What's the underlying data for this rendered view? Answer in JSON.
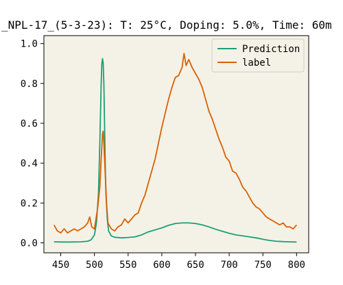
{
  "chart_data": {
    "type": "line",
    "title": "_NPL-17_(5-3-23): T: 25°C, Doping: 5.0%, Time: 60m",
    "xlabel": "",
    "ylabel": "",
    "xlim": [
      425,
      818
    ],
    "ylim": [
      -0.05,
      1.04
    ],
    "xticks": [
      450,
      500,
      550,
      600,
      650,
      700,
      750,
      800
    ],
    "yticks": [
      0.0,
      0.2,
      0.4,
      0.6,
      0.8,
      1.0
    ],
    "xtick_labels": [
      "450",
      "500",
      "550",
      "600",
      "650",
      "700",
      "750",
      "800"
    ],
    "ytick_labels": [
      "0.0",
      "0.2",
      "0.4",
      "0.6",
      "0.8",
      "1.0"
    ],
    "grid": false,
    "background": "#f4f2e6",
    "legend_position": "top-right",
    "series": [
      {
        "name": "Prediction",
        "color": "#1b9e77",
        "points": [
          [
            440,
            0.005
          ],
          [
            460,
            0.004
          ],
          [
            480,
            0.005
          ],
          [
            490,
            0.008
          ],
          [
            495,
            0.015
          ],
          [
            500,
            0.04
          ],
          [
            503,
            0.1
          ],
          [
            506,
            0.25
          ],
          [
            508,
            0.5
          ],
          [
            510,
            0.8
          ],
          [
            511,
            0.9
          ],
          [
            512,
            0.925
          ],
          [
            513,
            0.9
          ],
          [
            514,
            0.8
          ],
          [
            515,
            0.6
          ],
          [
            516,
            0.4
          ],
          [
            517,
            0.25
          ],
          [
            519,
            0.12
          ],
          [
            521,
            0.06
          ],
          [
            525,
            0.035
          ],
          [
            530,
            0.028
          ],
          [
            540,
            0.025
          ],
          [
            550,
            0.027
          ],
          [
            560,
            0.03
          ],
          [
            570,
            0.04
          ],
          [
            580,
            0.055
          ],
          [
            590,
            0.065
          ],
          [
            600,
            0.075
          ],
          [
            610,
            0.088
          ],
          [
            620,
            0.097
          ],
          [
            630,
            0.1
          ],
          [
            640,
            0.1
          ],
          [
            650,
            0.097
          ],
          [
            660,
            0.09
          ],
          [
            670,
            0.08
          ],
          [
            680,
            0.068
          ],
          [
            690,
            0.058
          ],
          [
            700,
            0.048
          ],
          [
            710,
            0.04
          ],
          [
            720,
            0.035
          ],
          [
            730,
            0.03
          ],
          [
            740,
            0.025
          ],
          [
            750,
            0.018
          ],
          [
            760,
            0.012
          ],
          [
            770,
            0.008
          ],
          [
            780,
            0.006
          ],
          [
            790,
            0.005
          ],
          [
            800,
            0.004
          ]
        ]
      },
      {
        "name": "label",
        "color": "#d95f02",
        "points": [
          [
            440,
            0.09
          ],
          [
            445,
            0.06
          ],
          [
            450,
            0.05
          ],
          [
            455,
            0.07
          ],
          [
            460,
            0.05
          ],
          [
            465,
            0.06
          ],
          [
            470,
            0.07
          ],
          [
            475,
            0.06
          ],
          [
            480,
            0.07
          ],
          [
            485,
            0.08
          ],
          [
            490,
            0.1
          ],
          [
            493,
            0.13
          ],
          [
            496,
            0.08
          ],
          [
            500,
            0.07
          ],
          [
            505,
            0.18
          ],
          [
            508,
            0.28
          ],
          [
            510,
            0.42
          ],
          [
            512,
            0.55
          ],
          [
            513,
            0.56
          ],
          [
            514,
            0.5
          ],
          [
            516,
            0.35
          ],
          [
            518,
            0.2
          ],
          [
            520,
            0.1
          ],
          [
            525,
            0.07
          ],
          [
            530,
            0.06
          ],
          [
            535,
            0.08
          ],
          [
            540,
            0.09
          ],
          [
            545,
            0.12
          ],
          [
            550,
            0.1
          ],
          [
            555,
            0.12
          ],
          [
            560,
            0.14
          ],
          [
            565,
            0.15
          ],
          [
            570,
            0.2
          ],
          [
            575,
            0.24
          ],
          [
            580,
            0.3
          ],
          [
            585,
            0.36
          ],
          [
            590,
            0.42
          ],
          [
            595,
            0.5
          ],
          [
            600,
            0.58
          ],
          [
            605,
            0.65
          ],
          [
            610,
            0.72
          ],
          [
            615,
            0.78
          ],
          [
            620,
            0.83
          ],
          [
            625,
            0.84
          ],
          [
            630,
            0.88
          ],
          [
            633,
            0.95
          ],
          [
            636,
            0.89
          ],
          [
            640,
            0.92
          ],
          [
            645,
            0.88
          ],
          [
            650,
            0.85
          ],
          [
            655,
            0.82
          ],
          [
            660,
            0.78
          ],
          [
            665,
            0.72
          ],
          [
            670,
            0.66
          ],
          [
            675,
            0.62
          ],
          [
            680,
            0.57
          ],
          [
            685,
            0.52
          ],
          [
            690,
            0.48
          ],
          [
            695,
            0.43
          ],
          [
            700,
            0.41
          ],
          [
            705,
            0.36
          ],
          [
            710,
            0.35
          ],
          [
            715,
            0.32
          ],
          [
            720,
            0.28
          ],
          [
            725,
            0.26
          ],
          [
            730,
            0.23
          ],
          [
            735,
            0.2
          ],
          [
            740,
            0.18
          ],
          [
            745,
            0.17
          ],
          [
            750,
            0.15
          ],
          [
            755,
            0.13
          ],
          [
            760,
            0.12
          ],
          [
            765,
            0.11
          ],
          [
            770,
            0.1
          ],
          [
            775,
            0.09
          ],
          [
            780,
            0.1
          ],
          [
            785,
            0.08
          ],
          [
            790,
            0.08
          ],
          [
            795,
            0.07
          ],
          [
            800,
            0.09
          ]
        ]
      }
    ]
  }
}
